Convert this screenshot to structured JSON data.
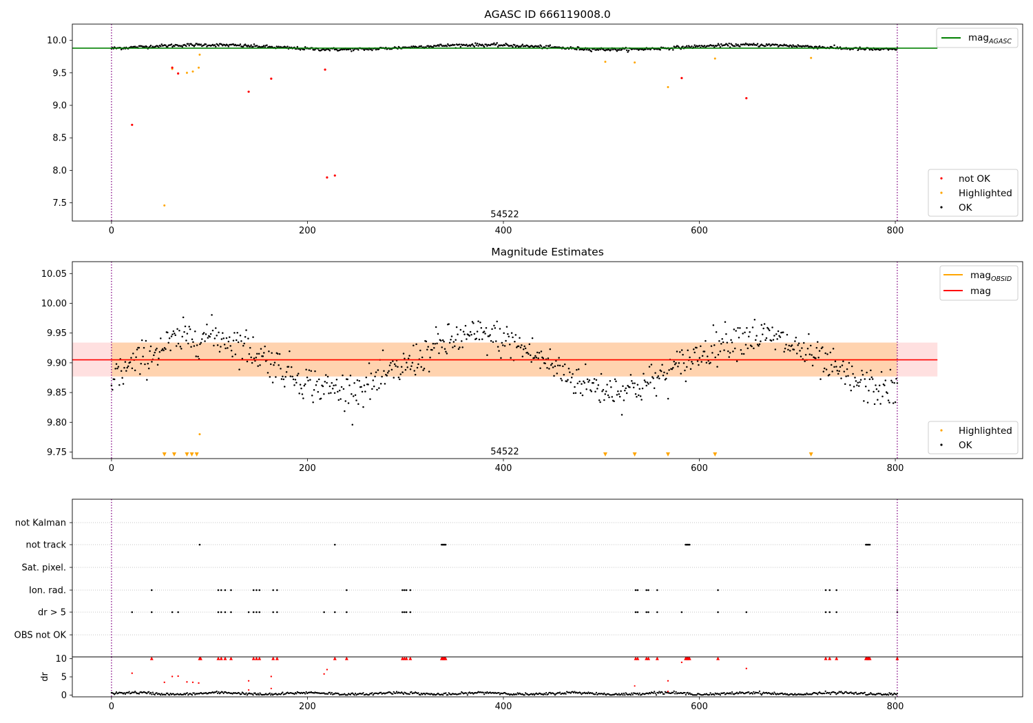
{
  "chart_data": [
    {
      "type": "scatter",
      "title": "AGASC ID 666119008.0",
      "xlim": [
        -40,
        930
      ],
      "ylim": [
        7.22,
        10.25
      ],
      "xticks": [
        0,
        200,
        400,
        600,
        800
      ],
      "yticks": [
        7.5,
        8.0,
        8.5,
        9.0,
        9.5,
        10.0
      ],
      "ytick_labels": [
        "7.5",
        "8.0",
        "8.5",
        "9.0",
        "9.5",
        "10.0"
      ],
      "vlines": [
        0,
        802
      ],
      "annotation": {
        "text": "54522",
        "x": 400,
        "y": 7.35
      },
      "reference_line": {
        "label": "mag",
        "label_sub": "AGASC",
        "value": 9.88,
        "color": "#008000",
        "x_end": 843
      },
      "legend_lines": [
        {
          "label": "mag",
          "sub": "AGASC",
          "color": "#008000"
        }
      ],
      "legend_markers": [
        {
          "label": "not OK",
          "color": "#ff0000"
        },
        {
          "label": "Highlighted",
          "color": "#ffa500"
        },
        {
          "label": "OK",
          "color": "#000000"
        }
      ],
      "legend_placement": [
        "upper right",
        "lower right"
      ],
      "ok_series": {
        "name": "OK",
        "color": "#000000",
        "n": 800,
        "x_max": 802,
        "baseline": 9.895,
        "amplitude": 0.035,
        "period": 280
      },
      "highlighted": {
        "name": "Highlighted",
        "color": "#ffa500",
        "x": [
          54,
          62,
          77,
          83,
          89,
          90,
          504,
          534,
          568,
          616,
          714
        ],
        "y": [
          7.46,
          9.56,
          9.5,
          9.52,
          9.58,
          9.78,
          9.67,
          9.66,
          9.28,
          9.72,
          9.73
        ]
      },
      "not_ok": {
        "name": "not OK",
        "color": "#ff0000",
        "x": [
          21,
          62,
          68,
          140,
          163,
          218,
          220,
          228,
          582,
          648
        ],
        "y": [
          8.7,
          9.58,
          9.49,
          9.21,
          9.41,
          9.55,
          7.89,
          7.92,
          9.42,
          9.11
        ]
      }
    },
    {
      "type": "scatter",
      "title": "Magnitude Estimates",
      "xlim": [
        -40,
        930
      ],
      "ylim": [
        9.739,
        10.07
      ],
      "xticks": [
        0,
        200,
        400,
        600,
        800
      ],
      "yticks": [
        9.75,
        9.8,
        9.85,
        9.9,
        9.95,
        10.0,
        10.05
      ],
      "ytick_labels": [
        "9.75",
        "9.80",
        "9.85",
        "9.90",
        "9.95",
        "10.00",
        "10.05"
      ],
      "vlines": [
        0,
        802
      ],
      "annotation": {
        "text": "54522",
        "x": 400,
        "y": 9.752
      },
      "mag_line": {
        "label": "mag",
        "value": 9.905,
        "band": [
          9.877,
          9.934
        ],
        "color": "#ff0000",
        "x_end": 843
      },
      "mag_obsid": {
        "label": "mag",
        "sub": "OBSID",
        "value": 9.905,
        "band": [
          9.877,
          9.934
        ],
        "color": "#ffa500",
        "x_end": 802
      },
      "legend_lines": [
        {
          "label": "mag",
          "sub": "OBSID",
          "color": "#ffa500"
        },
        {
          "label": "mag",
          "sub": "",
          "color": "#ff0000"
        }
      ],
      "legend_markers": [
        {
          "label": "Highlighted",
          "color": "#ffa500"
        },
        {
          "label": "OK",
          "color": "#000000"
        }
      ],
      "legend_placement": [
        "upper right",
        "lower right"
      ],
      "ok_series": {
        "name": "OK",
        "color": "#000000",
        "n": 800,
        "x_max": 802,
        "baseline": 9.9,
        "amplitude": 0.045,
        "period": 280
      },
      "highlighted": {
        "name": "Highlighted",
        "color": "#ffa500",
        "x": [
          90
        ],
        "y": [
          9.78
        ]
      },
      "off_scale_markers": {
        "color": "#ffa500",
        "x": [
          54,
          64,
          77,
          82,
          87,
          504,
          534,
          568,
          616,
          714
        ]
      }
    },
    {
      "type": "scatter",
      "title": "",
      "xlim": [
        -40,
        930
      ],
      "categories": [
        "not Kalman",
        "not track",
        "Sat. pixel.",
        "Ion. rad.",
        "dr > 5",
        "OBS not OK"
      ],
      "flags": {
        "not Kalman": [],
        "not track": [
          90,
          228,
          337,
          338,
          339,
          340,
          341,
          586,
          587,
          588,
          589,
          590,
          770,
          771,
          772,
          773,
          774
        ],
        "Sat. pixel.": [],
        "Ion. rad.": [
          41,
          109,
          112,
          116,
          122,
          145,
          148,
          151,
          165,
          169,
          240,
          297,
          299,
          301,
          305,
          535,
          537,
          546,
          548,
          557,
          619,
          729,
          733,
          740,
          802
        ],
        "dr > 5": [
          21,
          41,
          62,
          68,
          109,
          112,
          116,
          122,
          140,
          145,
          148,
          151,
          165,
          169,
          217,
          228,
          240,
          297,
          299,
          301,
          305,
          535,
          537,
          546,
          548,
          557,
          582,
          619,
          648,
          729,
          733,
          740,
          802
        ],
        "OBS not OK": []
      },
      "gridlines": "dotted"
    },
    {
      "type": "scatter",
      "title": "",
      "xlim": [
        -40,
        930
      ],
      "xticks": [
        0,
        200,
        400,
        600,
        800
      ],
      "ylabel": "dr",
      "ylim": [
        -0.5,
        10.5
      ],
      "yticks": [
        0,
        5,
        10
      ],
      "vlines": [
        0,
        802
      ],
      "ok_series": {
        "name": "OK",
        "color": "#000000",
        "n": 800,
        "x_max": 802,
        "base": 0.4,
        "spread": 0.7
      },
      "clipped_markers": {
        "color": "#ff0000",
        "y": 10,
        "x": [
          41,
          90,
          91,
          109,
          112,
          116,
          122,
          145,
          148,
          151,
          165,
          169,
          228,
          240,
          297,
          299,
          301,
          305,
          337,
          338,
          339,
          340,
          341,
          535,
          537,
          546,
          548,
          557,
          586,
          587,
          588,
          589,
          590,
          619,
          729,
          733,
          740,
          770,
          771,
          772,
          773,
          774,
          802
        ]
      },
      "outliers": {
        "color": "#ff0000",
        "x": [
          21,
          54,
          62,
          68,
          77,
          83,
          89,
          140,
          163,
          217,
          220,
          568,
          582,
          648
        ],
        "y": [
          6.0,
          3.5,
          5.1,
          5.2,
          3.6,
          3.5,
          3.3,
          3.9,
          5.1,
          5.8,
          7.0,
          3.9,
          9.0,
          7.3
        ]
      },
      "small_red": {
        "color": "#ff0000",
        "x": [
          140,
          163,
          534,
          568
        ],
        "y": [
          1.4,
          1.8,
          2.5,
          1.0
        ]
      }
    }
  ]
}
